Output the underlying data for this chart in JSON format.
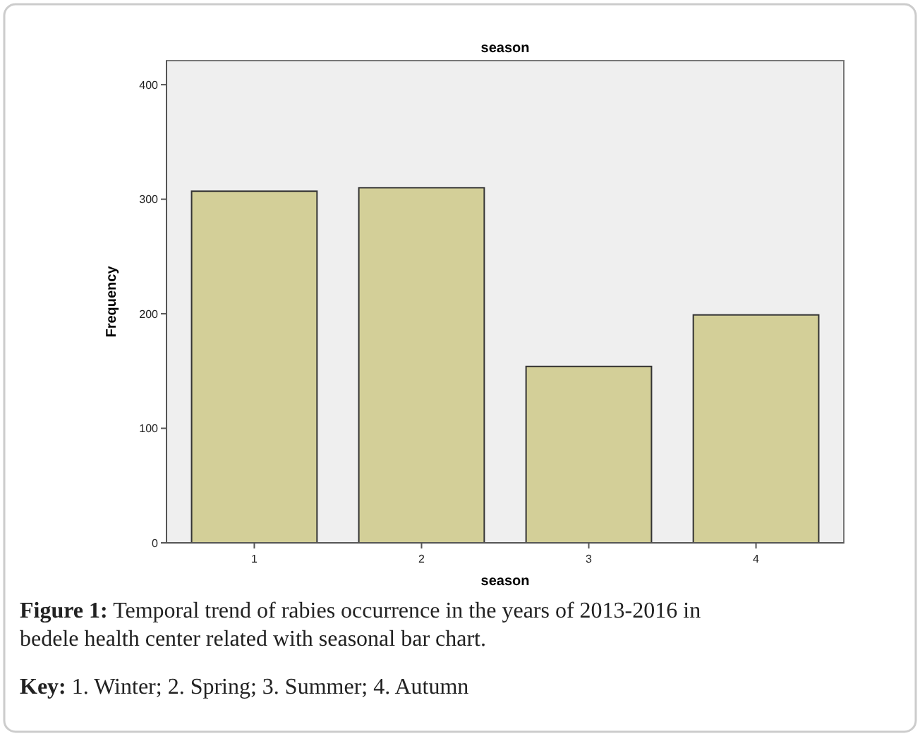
{
  "chart_data": {
    "type": "bar",
    "title": "season",
    "xlabel": "season",
    "ylabel": "Frequency",
    "categories": [
      "1",
      "2",
      "3",
      "4"
    ],
    "values": [
      307,
      310,
      154,
      199
    ],
    "color": "#d3cf98",
    "ylim": [
      0,
      421
    ],
    "yticks": [
      0,
      100,
      200,
      300,
      400
    ],
    "grid": false,
    "annotations": [
      "Figure 1: Temporal trend of rabies occurrence in the years of 2013-2016 in bedele health center related with seasonal bar chart.",
      "Key: 1. Winter; 2. Spring; 3. Summer; 4. Autumn"
    ]
  }
}
